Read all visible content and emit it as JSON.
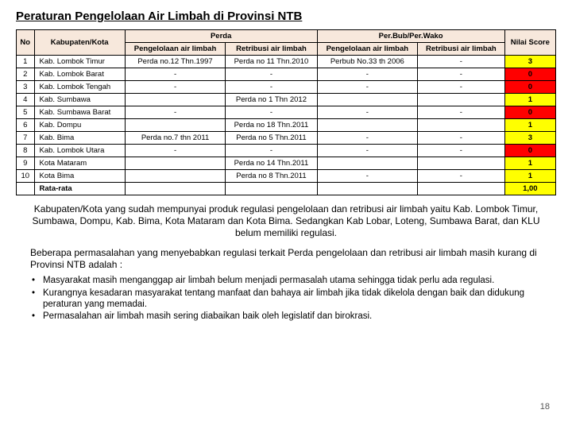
{
  "title": "Peraturan Pengelolaan Air Limbah di Provinsi NTB",
  "headers": {
    "no": "No",
    "kab": "Kabupaten/Kota",
    "perda": "Perda",
    "perbub": "Per.Bub/Per.Wako",
    "nilai": "Nilai Score",
    "peng": "Pengelolaan air limbah",
    "retr": "Retribusi air limbah"
  },
  "rows": [
    {
      "no": "1",
      "kab": "Kab. Lombok Timur",
      "c1": "Perda no.12 Thn.1997",
      "c2": "Perda no 11 Thn.2010",
      "c3": "Perbub No.33 th 2006",
      "c4": "-",
      "score": "3",
      "color": "yellow"
    },
    {
      "no": "2",
      "kab": "Kab. Lombok Barat",
      "c1": "-",
      "c2": "-",
      "c3": "-",
      "c4": "-",
      "score": "0",
      "color": "red"
    },
    {
      "no": "3",
      "kab": "Kab. Lombok Tengah",
      "c1": "-",
      "c2": "-",
      "c3": "-",
      "c4": "-",
      "score": "0",
      "color": "red"
    },
    {
      "no": "4",
      "kab": "Kab. Sumbawa",
      "c1": "",
      "c2": "Perda no 1 Thn 2012",
      "c3": "",
      "c4": "",
      "score": "1",
      "color": "yellow"
    },
    {
      "no": "5",
      "kab": "Kab. Sumbawa Barat",
      "c1": "-",
      "c2": "-",
      "c3": "-",
      "c4": "-",
      "score": "0",
      "color": "red"
    },
    {
      "no": "6",
      "kab": "Kab. Dompu",
      "c1": "",
      "c2": "Perda no 18 Thn.2011",
      "c3": "",
      "c4": "",
      "score": "1",
      "color": "yellow"
    },
    {
      "no": "7",
      "kab": "Kab. Bima",
      "c1": "Perda no.7 thn 2011",
      "c2": "Perda no 5 Thn.2011",
      "c3": "-",
      "c4": "-",
      "score": "3",
      "color": "yellow"
    },
    {
      "no": "8",
      "kab": "Kab. Lombok Utara",
      "c1": "-",
      "c2": "-",
      "c3": "-",
      "c4": "-",
      "score": "0",
      "color": "red"
    },
    {
      "no": "9",
      "kab": "Kota Mataram",
      "c1": "",
      "c2": "Perda no 14 Thn.2011",
      "c3": "",
      "c4": "",
      "score": "1",
      "color": "yellow"
    },
    {
      "no": "10",
      "kab": "Kota Bima",
      "c1": "",
      "c2": "Perda no 8 Thn.2011",
      "c3": "-",
      "c4": "-",
      "score": "1",
      "color": "yellow"
    }
  ],
  "rata": {
    "label": "Rata-rata",
    "value": "1,00",
    "color": "yellow"
  },
  "para1": "Kabupaten/Kota yang sudah mempunyai produk regulasi pengelolaan dan retribusi air limbah yaitu Kab. Lombok Timur, Sumbawa, Dompu, Kab. Bima, Kota Mataram dan Kota Bima. Sedangkan Kab Lobar, Loteng, Sumbawa Barat, dan KLU belum memiliki regulasi.",
  "para2": "Beberapa permasalahan  yang menyebabkan regulasi terkait Perda  pengelolaan dan retribusi air limbah masih kurang di Provinsi NTB adalah :",
  "bullets": [
    "Masyarakat masih menganggap air limbah  belum menjadi permasalah utama sehingga tidak perlu ada regulasi.",
    "Kurangnya  kesadaran masyarakat tentang  manfaat dan bahaya air limbah  jika tidak dikelola dengan baik dan didukung peraturan yang memadai.",
    "Permasalahan air limbah masih sering diabaikan baik oleh legislatif dan birokrasi."
  ],
  "page": "18"
}
